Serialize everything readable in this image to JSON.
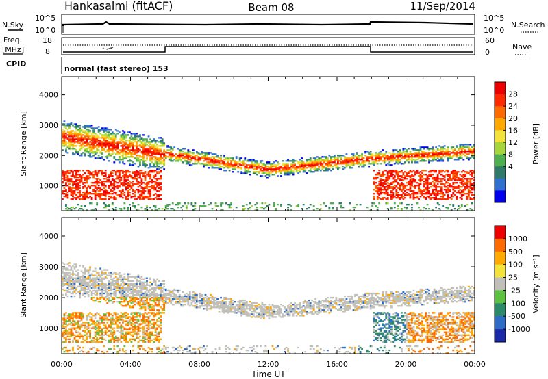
{
  "header": {
    "station": "Hankasalmi (fitACF)",
    "beam": "Beam 08",
    "date": "11/Sep/2014"
  },
  "top_panels": {
    "nsky_label": "N.Sky",
    "nsky_ticks": [
      "10^5",
      "10^0"
    ],
    "nsearch_label": "N.Search",
    "nsearch_ticks": [
      "10^5",
      "10^0"
    ],
    "freq_label_1": "Freq.",
    "freq_label_2": "[MHz]",
    "freq_ticks": [
      "18",
      "8"
    ],
    "nave_label": "Nave",
    "nave_ticks": [
      "60",
      "0"
    ],
    "cpid_label": "CPID",
    "cpid_text": "normal (fast stereo) 153"
  },
  "chart_data": [
    {
      "type": "heatmap",
      "name": "power",
      "xlabel": "Time UT",
      "ylabel": "Slant Range [km]",
      "x_ticks": [
        "00:00",
        "04:00",
        "08:00",
        "12:00",
        "16:00",
        "20:00",
        "00:00"
      ],
      "y_ticks": [
        1000,
        2000,
        3000,
        4000
      ],
      "ylim": [
        180,
        4600
      ],
      "xlim_hours": [
        0,
        24
      ],
      "colorbar_label": "Power [dB]",
      "colorbar_ticks": [
        "28",
        "24",
        "20",
        "16",
        "12",
        "8",
        "4"
      ],
      "colorbar_colors": [
        "#0000ee",
        "#3070d0",
        "#2f7a68",
        "#4fae50",
        "#a6d63a",
        "#f2e23a",
        "#ffa800",
        "#ff6a00",
        "#ff2a00",
        "#ee0000"
      ]
    },
    {
      "type": "heatmap",
      "name": "velocity",
      "xlabel": "Time UT",
      "ylabel": "Slant Range [km]",
      "x_ticks": [
        "00:00",
        "04:00",
        "08:00",
        "12:00",
        "16:00",
        "20:00",
        "00:00"
      ],
      "y_ticks": [
        1000,
        2000,
        3000,
        4000
      ],
      "ylim": [
        180,
        4600
      ],
      "xlim_hours": [
        0,
        24
      ],
      "colorbar_label": "Velocity [m s⁻¹]",
      "colorbar_ticks": [
        "1000",
        "500",
        "100",
        "25",
        "-25",
        "-100",
        "-500",
        "-1000"
      ],
      "colorbar_colors": [
        "#1a2aa8",
        "#2f6cc8",
        "#2a8a6a",
        "#5cc040",
        "#c0c0b8",
        "#f2e23a",
        "#ffa800",
        "#ff6a00",
        "#ee0000"
      ]
    }
  ]
}
